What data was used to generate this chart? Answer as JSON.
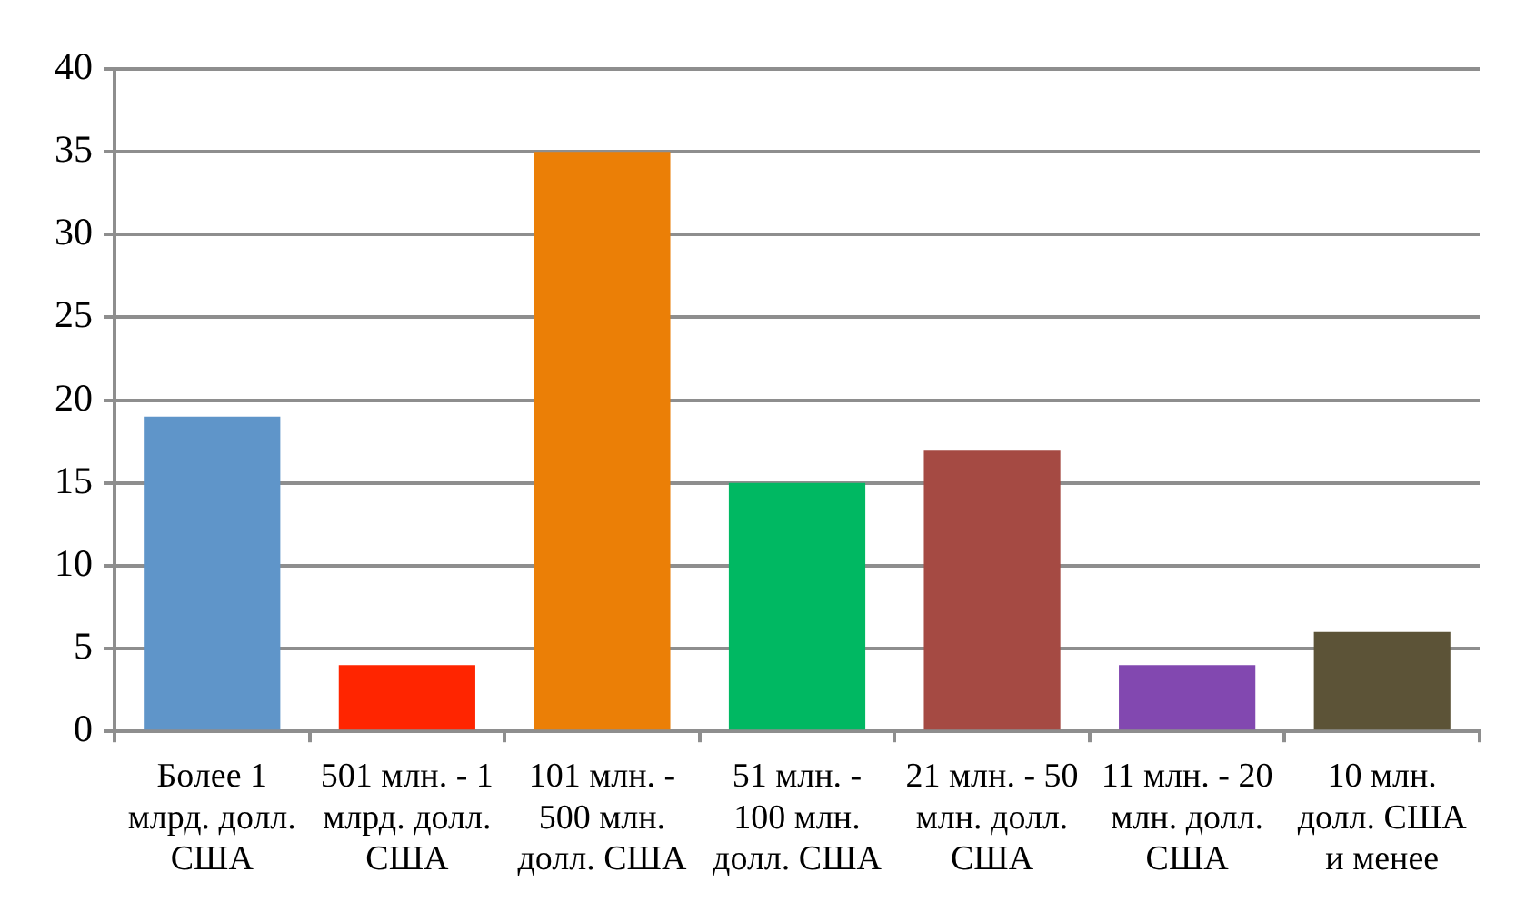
{
  "chart_data": {
    "type": "bar",
    "categories": [
      "Более 1 млрд. долл. США",
      "501 млн. - 1 млрд. долл. США",
      "101 млн. - 500 млн. долл. США",
      "51 млн. - 100 млн. долл. США",
      "21 млн. - 50 млн. долл. США",
      "11 млн. - 20 млн. долл. США",
      "10 млн. долл. США и менее"
    ],
    "values": [
      19,
      4,
      35,
      15,
      17,
      4,
      6
    ],
    "colors": [
      "#5f95c9",
      "#ff2500",
      "#eb7f06",
      "#00b862",
      "#a54a43",
      "#8248b0",
      "#5c5337"
    ],
    "ylim": [
      0,
      40
    ],
    "yticks": [
      0,
      5,
      10,
      15,
      20,
      25,
      30,
      35,
      40
    ],
    "grid": "y",
    "legend": false
  }
}
